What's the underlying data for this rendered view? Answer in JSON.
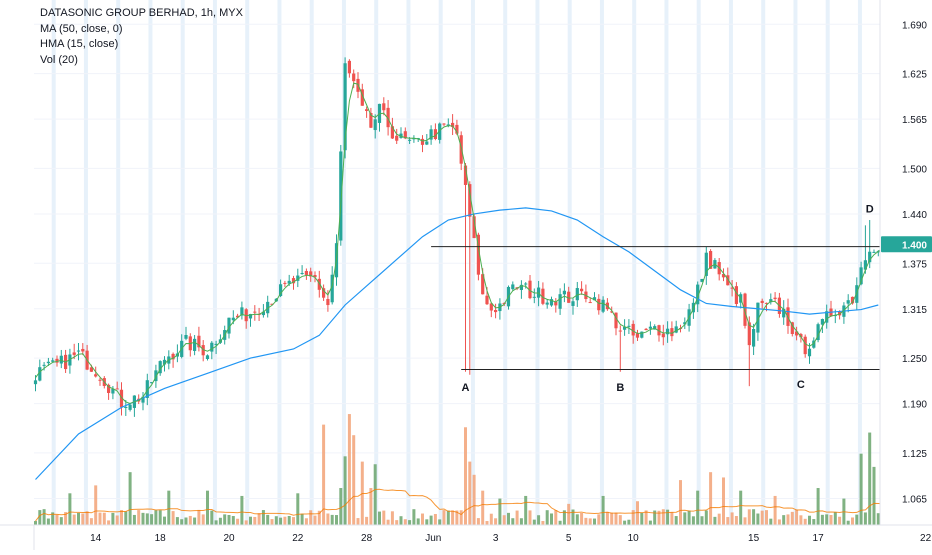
{
  "chart_data": {
    "type": "candlestick",
    "title": "DATASONIC GROUP BERHAD, 1h, MYX",
    "indicators": [
      "MA (50, close, 0)",
      "HMA (15, close)",
      "Vol (20)"
    ],
    "price_axis": {
      "ticks": [
        "1.690",
        "1.625",
        "1.565",
        "1.500",
        "1.440",
        "1.375",
        "1.315",
        "1.250",
        "1.190",
        "1.125",
        "1.065"
      ],
      "tick_values": [
        1.69,
        1.625,
        1.565,
        1.5,
        1.44,
        1.375,
        1.315,
        1.25,
        1.19,
        1.125,
        1.065
      ],
      "current_price": "1.400",
      "current_value": 1.4,
      "current_color": "#26a69a",
      "ylim": [
        1.03,
        1.722
      ]
    },
    "time_axis": {
      "labels": [
        "14",
        "18",
        "20",
        "22",
        "28",
        "Jun",
        "3",
        "5",
        "10",
        "15",
        "17",
        "22"
      ]
    },
    "annotations": [
      {
        "text": "A",
        "at_bar": 100,
        "price": 1.212
      },
      {
        "text": "B",
        "at_bar": 136,
        "price": 1.212
      },
      {
        "text": "C",
        "at_bar": 178,
        "price": 1.216
      },
      {
        "text": "D",
        "at_bar": 194,
        "price": 1.447
      }
    ],
    "levels": [
      {
        "name": "resistance",
        "price": 1.397,
        "from_bar": 92,
        "to_bar": 206
      },
      {
        "name": "support",
        "price": 1.235,
        "from_bar": 99,
        "to_bar": 215
      }
    ],
    "colors": {
      "up": "#26a69a",
      "down": "#ef5350",
      "ma": "#2196f3",
      "hma": "#4caf50",
      "vol_avg": "#f57c00",
      "vol_up": "#6aa56c",
      "vol_down": "#f2a277",
      "session_bands": "#e3eef9",
      "grid": "#f0f3fa"
    },
    "price_anchors": [
      [
        0,
        1.23
      ],
      [
        5,
        1.24
      ],
      [
        10,
        1.255
      ],
      [
        15,
        1.23
      ],
      [
        20,
        1.192
      ],
      [
        25,
        1.2
      ],
      [
        30,
        1.25
      ],
      [
        35,
        1.27
      ],
      [
        40,
        1.26
      ],
      [
        45,
        1.3
      ],
      [
        50,
        1.31
      ],
      [
        55,
        1.33
      ],
      [
        60,
        1.35
      ],
      [
        65,
        1.355
      ],
      [
        68,
        1.32
      ],
      [
        70,
        1.4
      ],
      [
        72,
        1.635
      ],
      [
        74,
        1.61
      ],
      [
        76,
        1.575
      ],
      [
        78,
        1.555
      ],
      [
        80,
        1.575
      ],
      [
        84,
        1.54
      ],
      [
        88,
        1.53
      ],
      [
        92,
        1.545
      ],
      [
        96,
        1.555
      ],
      [
        98,
        1.545
      ],
      [
        100,
        1.47
      ],
      [
        102,
        1.4
      ],
      [
        104,
        1.33
      ],
      [
        106,
        1.315
      ],
      [
        108,
        1.32
      ],
      [
        110,
        1.335
      ],
      [
        112,
        1.345
      ],
      [
        116,
        1.335
      ],
      [
        120,
        1.33
      ],
      [
        124,
        1.33
      ],
      [
        128,
        1.335
      ],
      [
        132,
        1.32
      ],
      [
        136,
        1.29
      ],
      [
        140,
        1.275
      ],
      [
        144,
        1.29
      ],
      [
        148,
        1.285
      ],
      [
        150,
        1.295
      ],
      [
        153,
        1.32
      ],
      [
        156,
        1.38
      ],
      [
        158,
        1.375
      ],
      [
        160,
        1.35
      ],
      [
        162,
        1.335
      ],
      [
        164,
        1.325
      ],
      [
        166,
        1.26
      ],
      [
        167,
        1.29
      ],
      [
        168,
        1.315
      ],
      [
        172,
        1.32
      ],
      [
        174,
        1.31
      ],
      [
        176,
        1.29
      ],
      [
        177,
        1.27
      ],
      [
        179,
        1.265
      ],
      [
        182,
        1.285
      ],
      [
        185,
        1.31
      ],
      [
        188,
        1.32
      ],
      [
        190,
        1.33
      ],
      [
        192,
        1.37
      ],
      [
        194,
        1.4
      ]
    ],
    "ma_anchors": [
      [
        0,
        1.09
      ],
      [
        10,
        1.15
      ],
      [
        20,
        1.185
      ],
      [
        30,
        1.21
      ],
      [
        40,
        1.23
      ],
      [
        50,
        1.25
      ],
      [
        60,
        1.262
      ],
      [
        66,
        1.28
      ],
      [
        72,
        1.32
      ],
      [
        78,
        1.35
      ],
      [
        84,
        1.38
      ],
      [
        90,
        1.41
      ],
      [
        96,
        1.432
      ],
      [
        102,
        1.44
      ],
      [
        108,
        1.445
      ],
      [
        114,
        1.448
      ],
      [
        120,
        1.444
      ],
      [
        126,
        1.432
      ],
      [
        132,
        1.41
      ],
      [
        138,
        1.39
      ],
      [
        144,
        1.365
      ],
      [
        150,
        1.34
      ],
      [
        156,
        1.322
      ],
      [
        162,
        1.318
      ],
      [
        168,
        1.315
      ],
      [
        174,
        1.312
      ],
      [
        180,
        1.308
      ],
      [
        186,
        1.311
      ],
      [
        192,
        1.314
      ],
      [
        196,
        1.32
      ]
    ],
    "volume": {
      "ylim": [
        0,
        5300000
      ],
      "spikes": [
        [
          2,
          600000
        ],
        [
          8,
          1200000
        ],
        [
          14,
          1500000
        ],
        [
          22,
          2000000
        ],
        [
          31,
          1300000
        ],
        [
          40,
          1300000
        ],
        [
          48,
          1100000
        ],
        [
          61,
          1200000
        ],
        [
          67,
          3800000
        ],
        [
          71,
          1400000
        ],
        [
          72,
          2600000
        ],
        [
          73,
          4200000
        ],
        [
          74,
          3400000
        ],
        [
          76,
          2400000
        ],
        [
          78,
          1400000
        ],
        [
          79,
          2300000
        ],
        [
          100,
          3700000
        ],
        [
          101,
          2400000
        ],
        [
          102,
          1900000
        ],
        [
          104,
          1300000
        ],
        [
          108,
          1000000
        ],
        [
          114,
          1100000
        ],
        [
          124,
          800000
        ],
        [
          132,
          1100000
        ],
        [
          140,
          900000
        ],
        [
          150,
          1700000
        ],
        [
          154,
          1300000
        ],
        [
          157,
          2000000
        ],
        [
          160,
          1800000
        ],
        [
          164,
          1300000
        ],
        [
          172,
          1100000
        ],
        [
          182,
          1400000
        ],
        [
          188,
          1000000
        ],
        [
          192,
          2700000
        ],
        [
          194,
          3500000
        ],
        [
          195,
          2200000
        ]
      ]
    }
  }
}
